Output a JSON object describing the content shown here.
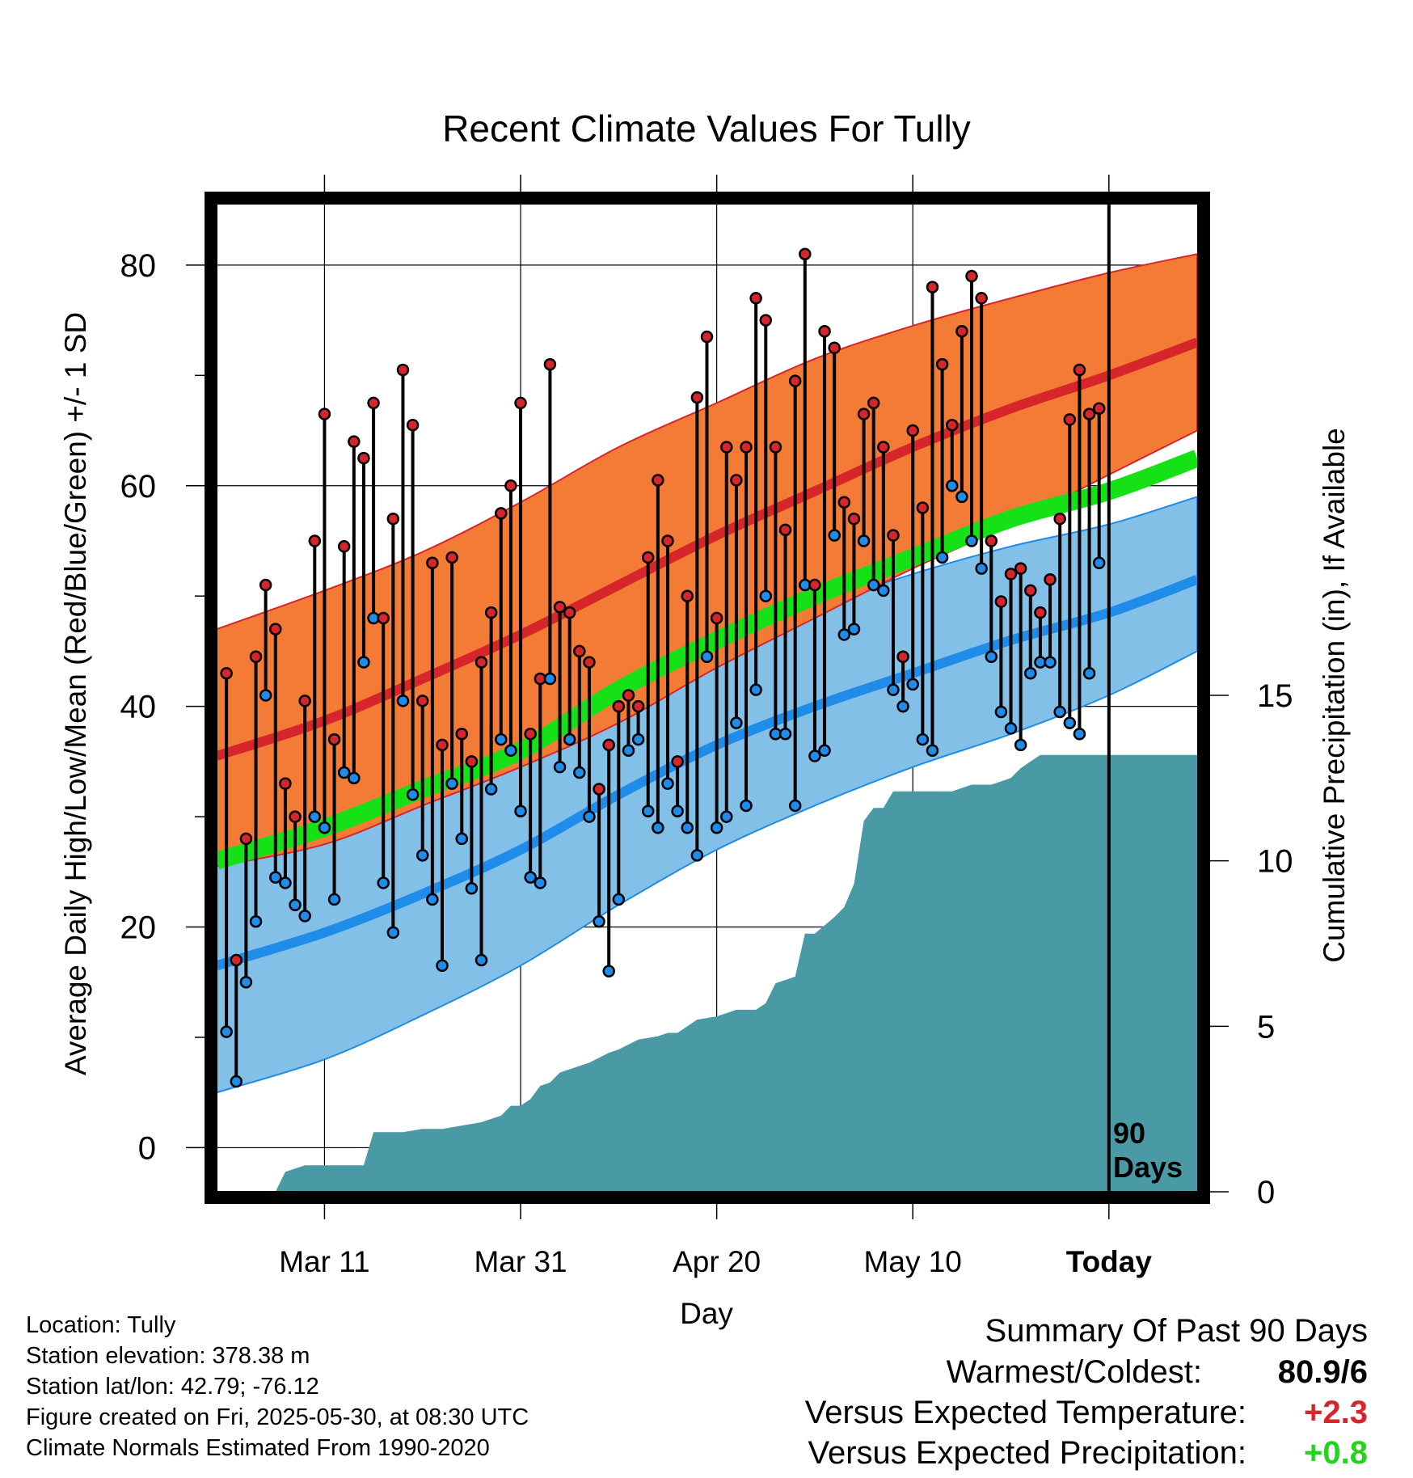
{
  "chart_data": {
    "type": "line",
    "title": "Recent Climate Values For Tully",
    "xlabel": "Day",
    "ylabel": "Average Daily High/Low/Mean (Red/Blue/Green) +/- 1 SD",
    "y2label": "Cumulative Precipitation (in), If Available",
    "xlim": [
      -11,
      89
    ],
    "ylim": [
      -4,
      86
    ],
    "y2lim": [
      0,
      30
    ],
    "x_ticks": [
      {
        "x": 0,
        "label": "Mar 11"
      },
      {
        "x": 20,
        "label": "Mar 31"
      },
      {
        "x": 40,
        "label": "Apr 20"
      },
      {
        "x": 60,
        "label": "May 10"
      },
      {
        "x": 80,
        "label": "Today"
      }
    ],
    "y_ticks": [
      0,
      20,
      40,
      60,
      80
    ],
    "y2_ticks": [
      0,
      5,
      10,
      15
    ],
    "marker_line_x": 80,
    "marker_label": [
      "90",
      "Days"
    ],
    "grid": true,
    "normals": {
      "x": [
        -11,
        0,
        10,
        20,
        30,
        40,
        50,
        60,
        70,
        80,
        89
      ],
      "high_mean": [
        35.5,
        38.7,
        42.5,
        46.5,
        51,
        55.5,
        59.5,
        63.5,
        67,
        70,
        73
      ],
      "high_plus_sd": [
        47,
        50.5,
        54,
        58.5,
        63.5,
        67.5,
        71.5,
        74.5,
        77,
        79.3,
        81
      ],
      "high_minus_sd": [
        25.5,
        27.5,
        31,
        34.5,
        38.5,
        43.5,
        48,
        52.5,
        56.5,
        61,
        65
      ],
      "low_mean": [
        16.5,
        19.5,
        23,
        27,
        32,
        36.5,
        40,
        43,
        46,
        48.5,
        51.5
      ],
      "low_plus_sd": [
        28.5,
        31,
        33.5,
        37,
        41.5,
        45.5,
        49,
        52,
        54.5,
        56.5,
        59
      ],
      "low_minus_sd": [
        5,
        8,
        12,
        16.5,
        22,
        27,
        31,
        34.5,
        37.5,
        41,
        45
      ],
      "avg_mean": [
        26,
        29,
        32.5,
        36,
        41.5,
        46,
        50,
        53.5,
        57,
        59.5,
        62.5
      ]
    },
    "daily": {
      "x_start": -10,
      "high": [
        43,
        17,
        28,
        44.5,
        51,
        47,
        33,
        30,
        40.5,
        55,
        66.5,
        37,
        54.5,
        64,
        62.5,
        67.5,
        48,
        57,
        70.5,
        65.5,
        40.5,
        53,
        36.5,
        53.5,
        37.5,
        35,
        44,
        48.5,
        57.5,
        60,
        67.5,
        37.5,
        42.5,
        71,
        49,
        48.5,
        45,
        44,
        32.5,
        36.5,
        40,
        41,
        40,
        53.5,
        60.5,
        55,
        35,
        50,
        68,
        73.5,
        48,
        63.5,
        60.5,
        63.5,
        77,
        75,
        63.5,
        56,
        69.5,
        81,
        51,
        74,
        72.5,
        58.5,
        57,
        66.5,
        67.5,
        63.5,
        55.5,
        44.5,
        65,
        58,
        78,
        71,
        65.5,
        74,
        79,
        77,
        55,
        49.5,
        52,
        52.5,
        50.5,
        48.5,
        51.5,
        57,
        66,
        70.5,
        66.5,
        67
      ],
      "low": [
        10.5,
        6,
        15,
        20.5,
        41,
        24.5,
        24,
        22,
        21,
        30,
        29,
        22.5,
        34,
        33.5,
        44,
        48,
        24,
        19.5,
        40.5,
        32,
        26.5,
        22.5,
        16.5,
        33,
        28,
        23.5,
        17,
        32.5,
        37,
        36,
        30.5,
        24.5,
        24,
        42.5,
        34.5,
        37,
        34,
        30,
        20.5,
        16,
        22.5,
        36,
        37,
        30.5,
        29,
        33,
        30.5,
        29,
        26.5,
        44.5,
        29,
        30,
        38.5,
        31,
        41.5,
        50,
        37.5,
        37.5,
        31,
        51,
        35.5,
        36,
        55.5,
        46.5,
        47,
        55,
        51,
        50.5,
        41.5,
        40,
        42,
        37,
        36,
        53.5,
        60,
        59,
        55,
        52.5,
        44.5,
        39.5,
        38,
        36.5,
        43,
        44,
        44,
        39.5,
        38.5,
        37.5,
        43,
        53
      ]
    },
    "precip": {
      "x": [
        -5,
        -4,
        -2,
        0,
        2,
        4,
        5,
        6,
        8,
        10,
        12,
        14,
        16,
        17,
        18,
        19,
        20,
        21,
        22,
        23,
        24,
        25,
        27,
        29,
        30,
        32,
        34,
        35,
        36,
        38,
        40,
        41,
        42,
        44,
        45,
        46,
        48,
        49,
        50,
        52,
        53,
        54,
        55,
        56,
        57,
        58,
        60,
        62,
        64,
        66,
        68,
        70,
        71,
        72,
        73,
        74,
        76,
        78,
        80,
        85,
        89
      ],
      "cumulative": [
        0,
        0.6,
        0.8,
        0.8,
        0.8,
        0.8,
        1.8,
        1.8,
        1.8,
        1.9,
        1.9,
        2,
        2.1,
        2.2,
        2.3,
        2.6,
        2.6,
        2.8,
        3.2,
        3.3,
        3.6,
        3.7,
        3.9,
        4.2,
        4.3,
        4.6,
        4.7,
        4.8,
        4.8,
        5.2,
        5.3,
        5.4,
        5.5,
        5.5,
        5.7,
        6.3,
        6.5,
        7.8,
        7.8,
        8.3,
        8.6,
        9.3,
        11.2,
        11.6,
        11.6,
        12.1,
        12.1,
        12.1,
        12.1,
        12.3,
        12.3,
        12.5,
        12.8,
        13,
        13.2,
        13.2,
        13.2,
        13.2,
        13.2,
        13.2,
        13.2
      ]
    }
  },
  "colors": {
    "high_band": "#f47b35",
    "high_line": "#d7262b",
    "low_band": "#82c0e8",
    "low_line": "#1e8ce8",
    "mean_line": "#16e016",
    "precip_fill": "#4a9aa5",
    "high_marker": "#d7262b",
    "low_marker": "#1e8ce8"
  },
  "info": {
    "location": "Location: Tully",
    "elevation": "Station elevation: 378.38 m",
    "latlon": "Station lat/lon: 42.79; -76.12",
    "created": "Figure created on Fri, 2025-05-30, at 08:30 UTC",
    "normals": "Climate Normals Estimated From 1990-2020"
  },
  "summary": {
    "title": "Summary Of Past 90 Days",
    "warm_cold_label": "Warmest/Coldest:",
    "warm_cold_value": "80.9/6",
    "temp_label": "Versus Expected Temperature:",
    "temp_value": "+2.3",
    "precip_label": "Versus Expected Precipitation:",
    "precip_value": "+0.8"
  }
}
